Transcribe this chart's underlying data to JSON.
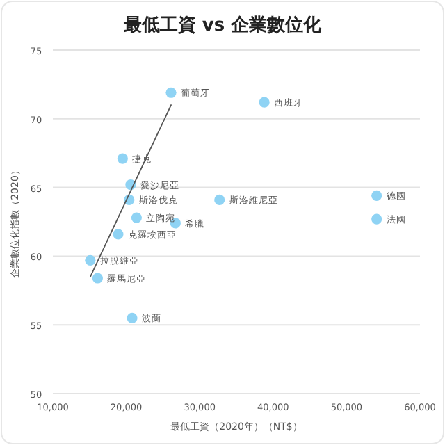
{
  "chart_data": {
    "type": "scatter",
    "title": "最低工資 vs 企業數位化",
    "xlabel": "最低工資（2020年）（NT$）",
    "ylabel": "企業數位化指數（2020）",
    "xlim": [
      10000,
      60000
    ],
    "xticks": [
      {
        "value": 10000,
        "label": "10,000"
      },
      {
        "value": 20000,
        "label": "20,000"
      },
      {
        "value": 30000,
        "label": "30,000"
      },
      {
        "value": 40000,
        "label": "40,000"
      },
      {
        "value": 50000,
        "label": "50,000"
      },
      {
        "value": 60000,
        "label": "60,000"
      }
    ],
    "ylim": [
      50,
      75
    ],
    "yticks": [
      50,
      55,
      60,
      65,
      70,
      75
    ],
    "grid": "y",
    "series": [
      {
        "marker": "circle",
        "color": "#8fd3f4",
        "x": [
          26100,
          38800,
          19500,
          20600,
          20400,
          21400,
          26700,
          18900,
          15100,
          16100,
          20800,
          32700,
          54100,
          54100
        ],
        "values": [
          71.9,
          71.2,
          67.1,
          65.2,
          64.1,
          62.8,
          62.4,
          61.6,
          59.7,
          58.4,
          55.5,
          64.1,
          64.4,
          62.7
        ]
      },
      {
        "type": "line",
        "color": "#555555",
        "x": [
          15100,
          26100
        ],
        "values": [
          58.5,
          71.0
        ],
        "line_style": "solid"
      }
    ],
    "annotations": [
      {
        "text": "葡萄牙",
        "x": 26100,
        "y": 71.9
      },
      {
        "text": "西班牙",
        "x": 38800,
        "y": 71.2
      },
      {
        "text": "捷克",
        "x": 19500,
        "y": 67.1
      },
      {
        "text": "愛沙尼亞",
        "x": 20600,
        "y": 65.2
      },
      {
        "text": "斯洛伐克",
        "x": 20400,
        "y": 64.1
      },
      {
        "text": "立陶宛",
        "x": 21400,
        "y": 62.8
      },
      {
        "text": "希臘",
        "x": 26700,
        "y": 62.4
      },
      {
        "text": "克羅埃西亞",
        "x": 18900,
        "y": 61.6
      },
      {
        "text": "拉脫維亞",
        "x": 15100,
        "y": 59.7
      },
      {
        "text": "羅馬尼亞",
        "x": 16100,
        "y": 58.4
      },
      {
        "text": "波蘭",
        "x": 20800,
        "y": 55.5
      },
      {
        "text": "斯洛維尼亞",
        "x": 32700,
        "y": 64.1
      },
      {
        "text": "德國",
        "x": 54100,
        "y": 64.4
      },
      {
        "text": "法國",
        "x": 54100,
        "y": 62.7
      }
    ]
  }
}
